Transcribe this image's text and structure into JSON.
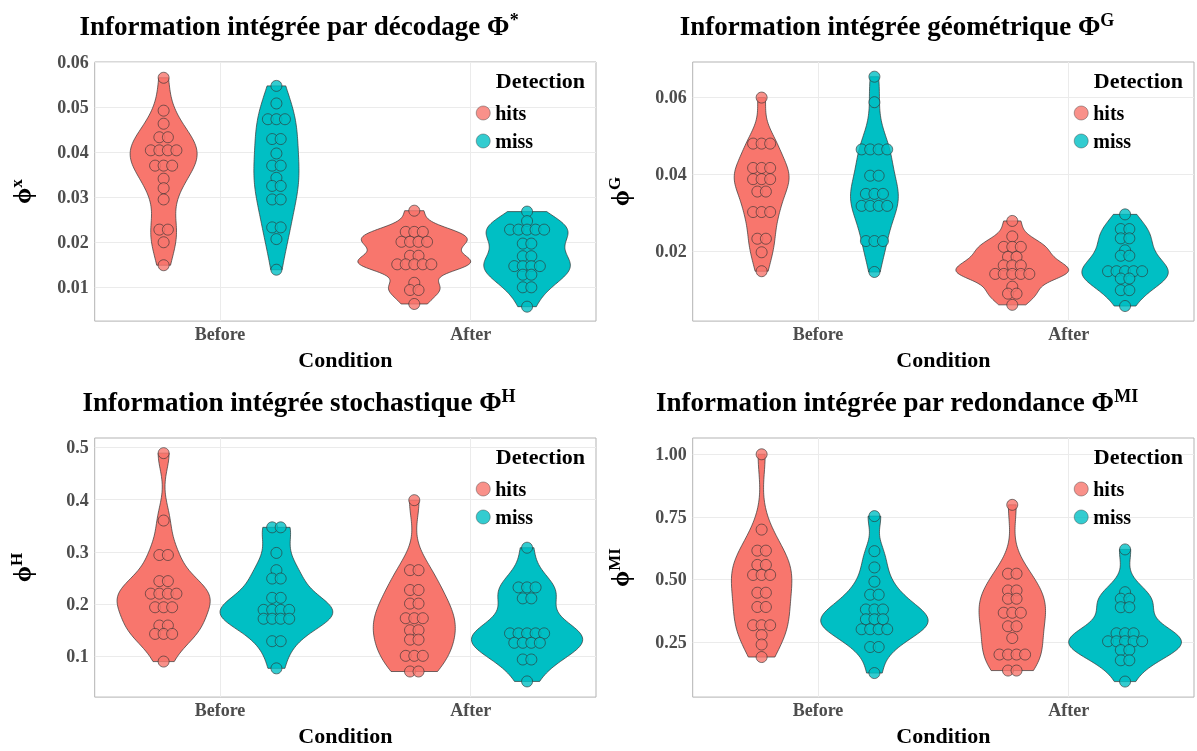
{
  "chart_data": [
    {
      "type": "scatter",
      "title": "Information intégrée par décodage Φ$^{*}$",
      "xlabel": "Condition",
      "ylabel": "ϕ$^{x}$",
      "legend_title": "Detection",
      "legend": "top right",
      "grid": true,
      "marker": "circle",
      "categories": [
        "Before",
        "After"
      ],
      "ylim": [
        0.0025,
        0.06
      ],
      "yticks": [
        0.01,
        0.02,
        0.03,
        0.04,
        0.05,
        0.06
      ],
      "series": [
        {
          "name": "hits",
          "color": "#f8766d",
          "x": [
            "Before",
            "Before",
            "Before",
            "Before",
            "Before",
            "Before",
            "Before",
            "Before",
            "Before",
            "Before",
            "Before",
            "Before",
            "Before",
            "Before",
            "Before",
            "Before",
            "Before",
            "Before",
            "Before",
            "After",
            "After",
            "After",
            "After",
            "After",
            "After",
            "After",
            "After",
            "After",
            "After",
            "After",
            "After",
            "After",
            "After",
            "After",
            "After",
            "After",
            "After",
            "After"
          ],
          "values": [
            0.0565,
            0.0492,
            0.0463,
            0.0433,
            0.0433,
            0.0404,
            0.0404,
            0.0404,
            0.0404,
            0.037,
            0.037,
            0.037,
            0.0341,
            0.032,
            0.0295,
            0.0228,
            0.0228,
            0.02,
            0.0149,
            0.027,
            0.0223,
            0.0223,
            0.0223,
            0.0201,
            0.0201,
            0.0201,
            0.0201,
            0.017,
            0.017,
            0.0151,
            0.0151,
            0.0151,
            0.0151,
            0.0151,
            0.011,
            0.0094,
            0.0094,
            0.0063
          ]
        },
        {
          "name": "miss",
          "color": "#00bfc4",
          "x": [
            "Before",
            "Before",
            "Before",
            "Before",
            "Before",
            "Before",
            "Before",
            "Before",
            "Before",
            "Before",
            "Before",
            "Before",
            "Before",
            "Before",
            "Before",
            "Before",
            "Before",
            "Before",
            "Before",
            "After",
            "After",
            "After",
            "After",
            "After",
            "After",
            "After",
            "After",
            "After",
            "After",
            "After",
            "After",
            "After",
            "After",
            "After",
            "After",
            "After",
            "After",
            "After",
            "After"
          ],
          "values": [
            0.0547,
            0.0508,
            0.0473,
            0.0473,
            0.0473,
            0.0429,
            0.0429,
            0.0397,
            0.037,
            0.037,
            0.0343,
            0.0325,
            0.0325,
            0.0295,
            0.0295,
            0.0233,
            0.0233,
            0.0207,
            0.0139,
            0.0268,
            0.0247,
            0.0228,
            0.0228,
            0.0228,
            0.0228,
            0.0228,
            0.0197,
            0.0197,
            0.0169,
            0.0169,
            0.0147,
            0.0147,
            0.0147,
            0.0147,
            0.0128,
            0.0128,
            0.01,
            0.01,
            0.0057
          ]
        }
      ]
    },
    {
      "type": "scatter",
      "title": "Information intégrée géométrique Φ$^{G}$",
      "xlabel": "Condition",
      "ylabel": "ϕ$^{G}$",
      "legend_title": "Detection",
      "legend": "top right",
      "grid": true,
      "marker": "circle",
      "categories": [
        "Before",
        "After"
      ],
      "ylim": [
        0.002,
        0.069
      ],
      "yticks": [
        0.02,
        0.04,
        0.06
      ],
      "series": [
        {
          "name": "hits",
          "color": "#f8766d",
          "x": [
            "Before",
            "Before",
            "Before",
            "Before",
            "Before",
            "Before",
            "Before",
            "Before",
            "Before",
            "Before",
            "Before",
            "Before",
            "Before",
            "Before",
            "Before",
            "Before",
            "Before",
            "Before",
            "Before",
            "After",
            "After",
            "After",
            "After",
            "After",
            "After",
            "After",
            "After",
            "After",
            "After",
            "After",
            "After",
            "After",
            "After",
            "After",
            "After",
            "After",
            "After",
            "After"
          ],
          "values": [
            0.0598,
            0.0479,
            0.0479,
            0.0479,
            0.0416,
            0.0416,
            0.0416,
            0.0387,
            0.0387,
            0.0387,
            0.0355,
            0.0355,
            0.0302,
            0.0302,
            0.0302,
            0.0233,
            0.0233,
            0.0198,
            0.0149,
            0.0279,
            0.0239,
            0.0212,
            0.0212,
            0.0212,
            0.0186,
            0.0186,
            0.0164,
            0.0164,
            0.0164,
            0.0142,
            0.0142,
            0.0142,
            0.0142,
            0.0142,
            0.0109,
            0.0091,
            0.0091,
            0.0062
          ]
        },
        {
          "name": "miss",
          "color": "#00bfc4",
          "x": [
            "Before",
            "Before",
            "Before",
            "Before",
            "Before",
            "Before",
            "Before",
            "Before",
            "Before",
            "Before",
            "Before",
            "Before",
            "Before",
            "Before",
            "Before",
            "Before",
            "Before",
            "Before",
            "Before",
            "After",
            "After",
            "After",
            "After",
            "After",
            "After",
            "After",
            "After",
            "After",
            "After",
            "After",
            "After",
            "After",
            "After",
            "After",
            "After",
            "After",
            "After"
          ],
          "values": [
            0.0652,
            0.0586,
            0.0464,
            0.0464,
            0.0464,
            0.0464,
            0.0396,
            0.0396,
            0.0349,
            0.0349,
            0.0349,
            0.0318,
            0.0318,
            0.0318,
            0.0318,
            0.0227,
            0.0227,
            0.0227,
            0.0147,
            0.0296,
            0.0258,
            0.0258,
            0.0234,
            0.0234,
            0.0203,
            0.0189,
            0.0189,
            0.0149,
            0.0149,
            0.0149,
            0.0149,
            0.0149,
            0.013,
            0.013,
            0.01,
            0.01,
            0.0059
          ]
        }
      ]
    },
    {
      "type": "scatter",
      "title": "Information intégrée stochastique Φ$^{H}$",
      "xlabel": "Condition",
      "ylabel": "ϕ$^{H}$",
      "legend_title": "Detection",
      "legend": "top right",
      "grid": true,
      "marker": "circle",
      "categories": [
        "Before",
        "After"
      ],
      "ylim": [
        0.022,
        0.518
      ],
      "yticks": [
        0.1,
        0.2,
        0.3,
        0.4,
        0.5
      ],
      "series": [
        {
          "name": "hits",
          "color": "#f8766d",
          "x": [
            "Before",
            "Before",
            "Before",
            "Before",
            "Before",
            "Before",
            "Before",
            "Before",
            "Before",
            "Before",
            "Before",
            "Before",
            "Before",
            "Before",
            "Before",
            "Before",
            "Before",
            "Before",
            "Before",
            "After",
            "After",
            "After",
            "After",
            "After",
            "After",
            "After",
            "After",
            "After",
            "After",
            "After",
            "After",
            "After",
            "After",
            "After",
            "After",
            "After",
            "After",
            "After"
          ],
          "values": [
            0.489,
            0.36,
            0.294,
            0.294,
            0.244,
            0.244,
            0.22,
            0.22,
            0.22,
            0.22,
            0.194,
            0.194,
            0.194,
            0.159,
            0.159,
            0.143,
            0.143,
            0.143,
            0.09,
            0.399,
            0.265,
            0.265,
            0.227,
            0.227,
            0.201,
            0.201,
            0.173,
            0.173,
            0.173,
            0.15,
            0.15,
            0.132,
            0.132,
            0.101,
            0.101,
            0.101,
            0.071,
            0.071
          ]
        },
        {
          "name": "miss",
          "color": "#00bfc4",
          "x": [
            "Before",
            "Before",
            "Before",
            "Before",
            "Before",
            "Before",
            "Before",
            "Before",
            "Before",
            "Before",
            "Before",
            "Before",
            "Before",
            "Before",
            "Before",
            "Before",
            "Before",
            "Before",
            "Before",
            "After",
            "After",
            "After",
            "After",
            "After",
            "After",
            "After",
            "After",
            "After",
            "After",
            "After",
            "After",
            "After",
            "After",
            "After",
            "After",
            "After",
            "After"
          ],
          "values": [
            0.347,
            0.347,
            0.298,
            0.265,
            0.249,
            0.249,
            0.212,
            0.212,
            0.189,
            0.189,
            0.189,
            0.189,
            0.172,
            0.172,
            0.172,
            0.172,
            0.129,
            0.129,
            0.077,
            0.308,
            0.232,
            0.232,
            0.232,
            0.211,
            0.211,
            0.144,
            0.144,
            0.144,
            0.144,
            0.144,
            0.126,
            0.126,
            0.126,
            0.126,
            0.094,
            0.094,
            0.052
          ]
        }
      ]
    },
    {
      "type": "scatter",
      "title": "Information intégrée par redondance Φ$^{MI}$",
      "xlabel": "Condition",
      "ylabel": "ϕ$^{MI}$",
      "legend_title": "Detection",
      "legend": "top right",
      "grid": true,
      "marker": "circle",
      "categories": [
        "Before",
        "After"
      ],
      "ylim": [
        0.03,
        1.065
      ],
      "yticks": [
        0.25,
        {
          "value": 0.5,
          "label": "0.50"
        },
        0.75,
        {
          "value": 1,
          "label": "1.00"
        }
      ],
      "series": [
        {
          "name": "hits",
          "color": "#f8766d",
          "x": [
            "Before",
            "Before",
            "Before",
            "Before",
            "Before",
            "Before",
            "Before",
            "Before",
            "Before",
            "Before",
            "Before",
            "Before",
            "Before",
            "Before",
            "Before",
            "Before",
            "Before",
            "Before",
            "Before",
            "After",
            "After",
            "After",
            "After",
            "After",
            "After",
            "After",
            "After",
            "After",
            "After",
            "After",
            "After",
            "After",
            "After",
            "After",
            "After",
            "After",
            "After",
            "After"
          ],
          "values": [
            1.0,
            0.699,
            0.615,
            0.615,
            0.558,
            0.558,
            0.518,
            0.518,
            0.518,
            0.447,
            0.447,
            0.39,
            0.39,
            0.317,
            0.317,
            0.317,
            0.278,
            0.24,
            0.19,
            0.798,
            0.523,
            0.523,
            0.456,
            0.456,
            0.423,
            0.423,
            0.367,
            0.367,
            0.367,
            0.313,
            0.313,
            0.266,
            0.2,
            0.2,
            0.2,
            0.2,
            0.136,
            0.136
          ]
        },
        {
          "name": "miss",
          "color": "#00bfc4",
          "x": [
            "Before",
            "Before",
            "Before",
            "Before",
            "Before",
            "Before",
            "Before",
            "Before",
            "Before",
            "Before",
            "Before",
            "Before",
            "Before",
            "Before",
            "Before",
            "Before",
            "Before",
            "Before",
            "Before",
            "After",
            "After",
            "After",
            "After",
            "After",
            "After",
            "After",
            "After",
            "After",
            "After",
            "After",
            "After",
            "After",
            "After",
            "After",
            "After",
            "After",
            "After",
            "After"
          ],
          "values": [
            0.753,
            0.613,
            0.548,
            0.491,
            0.439,
            0.439,
            0.38,
            0.38,
            0.38,
            0.341,
            0.341,
            0.341,
            0.301,
            0.301,
            0.301,
            0.301,
            0.23,
            0.23,
            0.126,
            0.62,
            0.449,
            0.423,
            0.423,
            0.389,
            0.389,
            0.285,
            0.285,
            0.285,
            0.253,
            0.253,
            0.253,
            0.253,
            0.253,
            0.218,
            0.218,
            0.177,
            0.177,
            0.092
          ]
        }
      ]
    }
  ]
}
